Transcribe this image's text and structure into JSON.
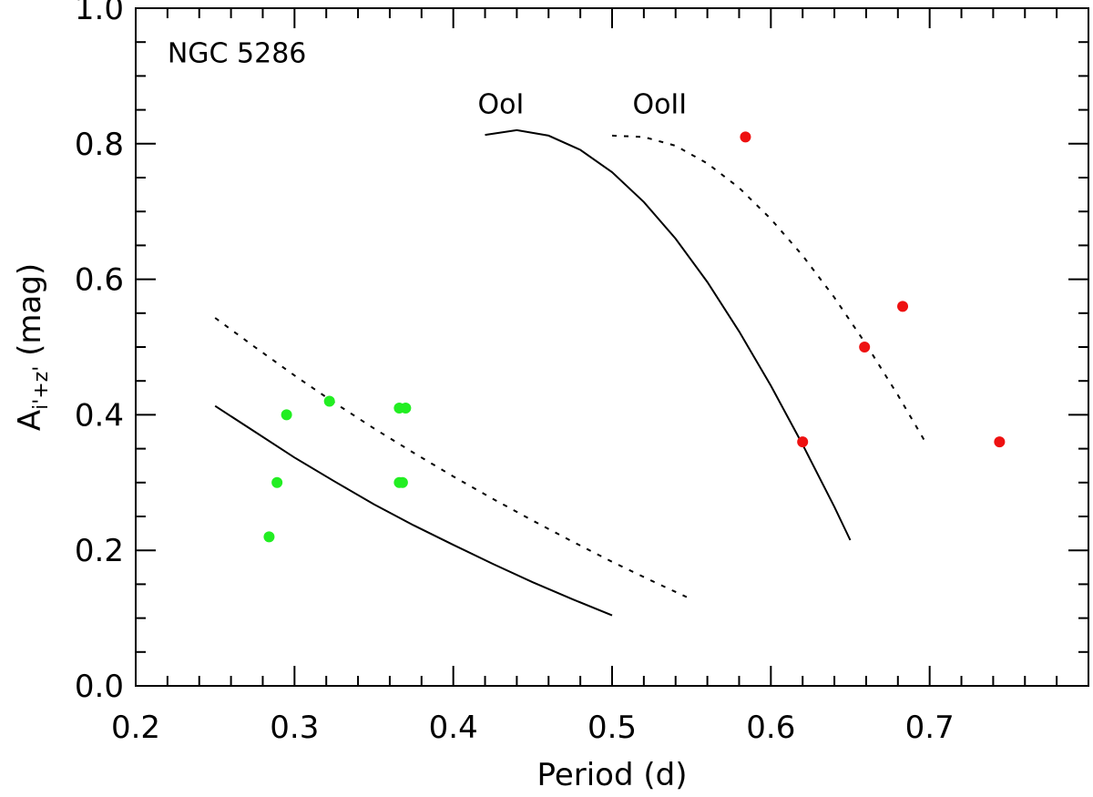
{
  "chart_data": {
    "type": "scatter",
    "title": "",
    "xlabel": "Period (d)",
    "ylabel": {
      "base": "A",
      "sub": "i'+z'",
      "unit": " (mag)"
    },
    "xlim": [
      0.2,
      0.8
    ],
    "ylim": [
      0.0,
      1.0
    ],
    "x_ticks": [
      "0.2",
      "0.3",
      "0.4",
      "0.5",
      "0.6",
      "0.7"
    ],
    "x_tick_values": [
      0.2,
      0.3,
      0.4,
      0.5,
      0.6,
      0.7
    ],
    "y_ticks": [
      "0.0",
      "0.2",
      "0.4",
      "0.6",
      "0.8",
      "1.0"
    ],
    "y_tick_values": [
      0.0,
      0.2,
      0.4,
      0.6,
      0.8,
      1.0
    ],
    "grid": false,
    "annotations": [
      {
        "text": "NGC 5286",
        "x": 0.22,
        "y": 0.92
      },
      {
        "text": "OoI",
        "x": 0.43,
        "y": 0.845
      },
      {
        "text": "OoII",
        "x": 0.53,
        "y": 0.845
      }
    ],
    "series": [
      {
        "kind": "points",
        "color": "#22ee22",
        "points": [
          {
            "x": 0.284,
            "y": 0.22
          },
          {
            "x": 0.289,
            "y": 0.3
          },
          {
            "x": 0.295,
            "y": 0.4
          },
          {
            "x": 0.322,
            "y": 0.42
          },
          {
            "x": 0.366,
            "y": 0.41
          },
          {
            "x": 0.37,
            "y": 0.41
          },
          {
            "x": 0.366,
            "y": 0.3
          },
          {
            "x": 0.368,
            "y": 0.3
          }
        ]
      },
      {
        "kind": "points",
        "color": "#ee1111",
        "points": [
          {
            "x": 0.584,
            "y": 0.81
          },
          {
            "x": 0.62,
            "y": 0.36
          },
          {
            "x": 0.659,
            "y": 0.5
          },
          {
            "x": 0.683,
            "y": 0.56
          },
          {
            "x": 0.744,
            "y": 0.36
          }
        ]
      },
      {
        "kind": "curve",
        "style": "solid",
        "points": [
          [
            0.25,
            0.413
          ],
          [
            0.275,
            0.375
          ],
          [
            0.3,
            0.337
          ],
          [
            0.325,
            0.302
          ],
          [
            0.35,
            0.268
          ],
          [
            0.375,
            0.237
          ],
          [
            0.4,
            0.208
          ],
          [
            0.425,
            0.18
          ],
          [
            0.45,
            0.153
          ],
          [
            0.475,
            0.128
          ],
          [
            0.5,
            0.104
          ]
        ]
      },
      {
        "kind": "curve",
        "style": "dashed",
        "points": [
          [
            0.25,
            0.543
          ],
          [
            0.275,
            0.5
          ],
          [
            0.3,
            0.458
          ],
          [
            0.325,
            0.418
          ],
          [
            0.35,
            0.38
          ],
          [
            0.375,
            0.344
          ],
          [
            0.4,
            0.309
          ],
          [
            0.425,
            0.276
          ],
          [
            0.45,
            0.244
          ],
          [
            0.475,
            0.213
          ],
          [
            0.5,
            0.183
          ],
          [
            0.525,
            0.155
          ],
          [
            0.547,
            0.131
          ]
        ]
      },
      {
        "kind": "curve",
        "style": "solid",
        "points": [
          [
            0.42,
            0.813
          ],
          [
            0.44,
            0.82
          ],
          [
            0.46,
            0.812
          ],
          [
            0.48,
            0.791
          ],
          [
            0.5,
            0.758
          ],
          [
            0.52,
            0.714
          ],
          [
            0.54,
            0.66
          ],
          [
            0.56,
            0.596
          ],
          [
            0.58,
            0.523
          ],
          [
            0.6,
            0.443
          ],
          [
            0.62,
            0.356
          ],
          [
            0.64,
            0.264
          ],
          [
            0.65,
            0.215
          ]
        ]
      },
      {
        "kind": "curve",
        "style": "dashed",
        "points": [
          [
            0.5,
            0.812
          ],
          [
            0.52,
            0.81
          ],
          [
            0.54,
            0.797
          ],
          [
            0.56,
            0.771
          ],
          [
            0.58,
            0.735
          ],
          [
            0.6,
            0.689
          ],
          [
            0.62,
            0.635
          ],
          [
            0.64,
            0.573
          ],
          [
            0.66,
            0.504
          ],
          [
            0.68,
            0.429
          ],
          [
            0.698,
            0.357
          ]
        ]
      }
    ]
  }
}
